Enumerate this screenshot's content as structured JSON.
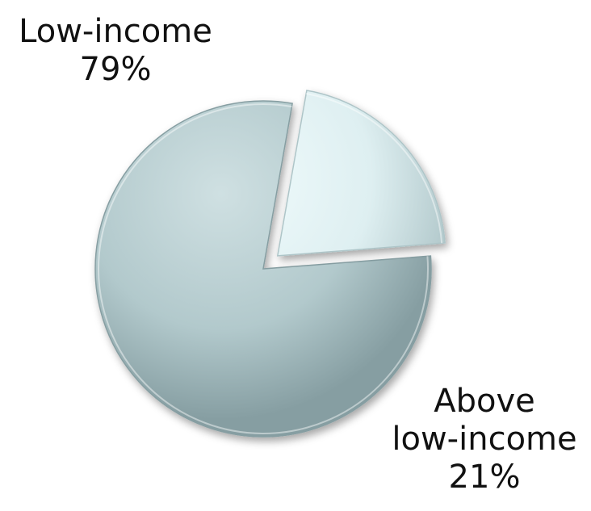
{
  "chart_data": {
    "type": "pie",
    "title": "",
    "slices": [
      {
        "label_lines": [
          "Low-income"
        ],
        "value": 79,
        "value_label": "79%",
        "color_light": "#cfe0e2",
        "color": "#b2c9cc",
        "color_dark": "#869ea2",
        "exploded": false
      },
      {
        "label_lines": [
          "Above",
          "low-income"
        ],
        "value": 21,
        "value_label": "21%",
        "color_light": "#f0fbfc",
        "color": "#deeff1",
        "color_dark": "#aec5c8",
        "exploded": true
      }
    ],
    "start_angle_deg": 80,
    "direction": "counterclockwise",
    "legend": "none"
  }
}
